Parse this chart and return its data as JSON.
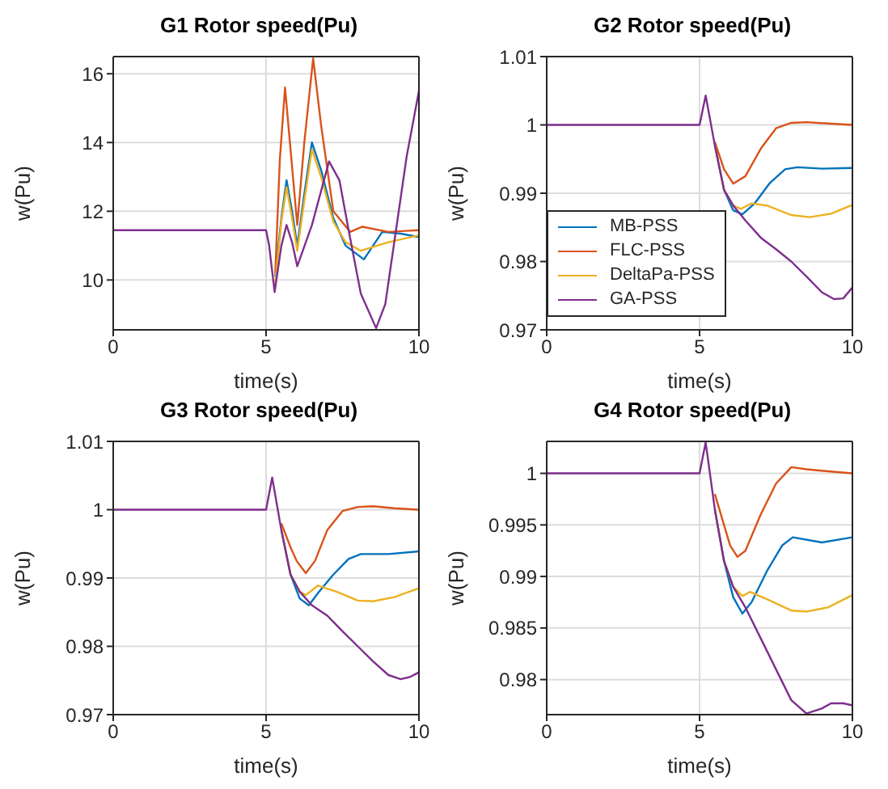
{
  "chart_data": [
    {
      "type": "line",
      "title": "G1 Rotor speed(Pu)",
      "xlabel": "time(s)",
      "ylabel": "w(Pu)",
      "xlim": [
        0,
        10
      ],
      "xticks": [
        0,
        5,
        10
      ],
      "ylim": [
        8.55,
        16.5
      ],
      "yticks": [
        10,
        12,
        14,
        16
      ],
      "grid": true,
      "legend": false,
      "series": [
        {
          "color": "#0072bd",
          "x": [
            5.3,
            5.5,
            5.67,
            5.85,
            6.02,
            6.25,
            6.5,
            6.8,
            7.2,
            7.6,
            8.2,
            8.8,
            9.4,
            10
          ],
          "values": [
            10.1,
            11.8,
            12.9,
            12.0,
            11.0,
            12.5,
            14.0,
            13.2,
            11.8,
            11.0,
            10.6,
            11.4,
            11.35,
            11.25
          ]
        },
        {
          "color": "#d95319",
          "x": [
            5.3,
            5.45,
            5.62,
            5.8,
            6.02,
            6.25,
            6.54,
            6.8,
            7.2,
            7.75,
            8.15,
            9,
            10
          ],
          "values": [
            10.2,
            13.5,
            15.6,
            13.8,
            11.6,
            14.0,
            16.45,
            14.5,
            12.0,
            11.4,
            11.55,
            11.4,
            11.45
          ]
        },
        {
          "color": "#edb120",
          "x": [
            5.3,
            5.5,
            5.67,
            5.85,
            6.02,
            6.25,
            6.5,
            6.8,
            7.2,
            7.6,
            8.1,
            9,
            10
          ],
          "values": [
            9.9,
            11.7,
            12.7,
            11.8,
            10.85,
            12.3,
            13.8,
            13.0,
            11.7,
            11.1,
            10.85,
            11.1,
            11.3
          ]
        },
        {
          "color": "#7e2f8e",
          "x": [
            0,
            5,
            5.1,
            5.28,
            5.5,
            5.67,
            5.85,
            6.02,
            6.5,
            7.06,
            7.4,
            7.7,
            8.1,
            8.6,
            8.9,
            9.25,
            9.6,
            10
          ],
          "values": [
            11.45,
            11.45,
            11.0,
            9.65,
            11.0,
            11.6,
            11.1,
            10.4,
            11.6,
            13.45,
            12.9,
            11.45,
            9.6,
            8.6,
            9.3,
            11.45,
            13.6,
            15.5
          ]
        }
      ]
    },
    {
      "type": "line",
      "title": "G2 Rotor speed(Pu)",
      "xlabel": "time(s)",
      "ylabel": "w(Pu)",
      "xlim": [
        0,
        10
      ],
      "xticks": [
        0,
        5,
        10
      ],
      "ylim": [
        0.97,
        1.01
      ],
      "yticks": [
        0.97,
        0.98,
        0.99,
        1,
        1.01
      ],
      "grid": true,
      "legend": "bottom left",
      "series": [
        {
          "name": "MB-PSS",
          "color": "#0072bd",
          "x": [
            5.5,
            5.8,
            6.1,
            6.4,
            6.8,
            7.3,
            7.8,
            8.2,
            9,
            10
          ],
          "values": [
            0.997,
            0.9905,
            0.9875,
            0.9869,
            0.9885,
            0.9915,
            0.9935,
            0.9938,
            0.9936,
            0.9937
          ]
        },
        {
          "name": "FLC-PSS",
          "color": "#d95319",
          "x": [
            5.5,
            5.8,
            6.1,
            6.5,
            7.0,
            7.5,
            8.0,
            8.5,
            9.2,
            10
          ],
          "values": [
            0.9975,
            0.9935,
            0.9914,
            0.9925,
            0.9965,
            0.9995,
            1.0003,
            1.0004,
            1.0002,
            1.0
          ]
        },
        {
          "name": "DeltaPa-PSS",
          "color": "#edb120",
          "x": [
            5.5,
            5.8,
            6.1,
            6.35,
            6.7,
            7.2,
            8.0,
            8.6,
            9.3,
            10
          ],
          "values": [
            0.997,
            0.9905,
            0.9882,
            0.9877,
            0.9885,
            0.9882,
            0.9868,
            0.9865,
            0.987,
            0.9883
          ]
        },
        {
          "name": "GA-PSS",
          "color": "#7e2f8e",
          "x": [
            0,
            5,
            5.2,
            5.5,
            5.8,
            6.1,
            6.5,
            7.0,
            7.5,
            8.0,
            8.5,
            9.0,
            9.4,
            9.7,
            10
          ],
          "values": [
            1,
            1,
            1.0043,
            0.997,
            0.9905,
            0.9882,
            0.986,
            0.9835,
            0.9818,
            0.98,
            0.9778,
            0.9755,
            0.9745,
            0.9746,
            0.9762
          ]
        }
      ]
    },
    {
      "type": "line",
      "title": "G3 Rotor speed(Pu)",
      "xlabel": "time(s)",
      "ylabel": "w(Pu)",
      "xlim": [
        0,
        10
      ],
      "xticks": [
        0,
        5,
        10
      ],
      "ylim": [
        0.97,
        1.01
      ],
      "yticks": [
        0.97,
        0.98,
        0.99,
        1,
        1.01
      ],
      "grid": true,
      "legend": false,
      "series": [
        {
          "color": "#0072bd",
          "x": [
            5.5,
            5.8,
            6.1,
            6.4,
            6.7,
            7.2,
            7.7,
            8.1,
            9,
            10
          ],
          "values": [
            0.997,
            0.9905,
            0.987,
            0.986,
            0.9878,
            0.9905,
            0.9928,
            0.9935,
            0.9935,
            0.9939
          ]
        },
        {
          "color": "#d95319",
          "x": [
            5.5,
            5.8,
            6.0,
            6.3,
            6.6,
            7.0,
            7.5,
            8.0,
            8.5,
            9.2,
            10
          ],
          "values": [
            0.998,
            0.9945,
            0.9925,
            0.9907,
            0.9925,
            0.997,
            0.9998,
            1.0004,
            1.0005,
            1.0002,
            1.0
          ]
        },
        {
          "color": "#edb120",
          "x": [
            5.5,
            5.8,
            6.1,
            6.3,
            6.7,
            7.3,
            8.0,
            8.5,
            9.2,
            10
          ],
          "values": [
            0.997,
            0.9905,
            0.988,
            0.9875,
            0.9889,
            0.988,
            0.9867,
            0.9866,
            0.9872,
            0.9885
          ]
        },
        {
          "color": "#7e2f8e",
          "x": [
            0,
            5,
            5.2,
            5.5,
            5.8,
            6.1,
            6.5,
            7.0,
            7.5,
            8.0,
            8.5,
            9.0,
            9.4,
            9.7,
            10
          ],
          "values": [
            1,
            1,
            1.0047,
            0.997,
            0.9905,
            0.988,
            0.986,
            0.9845,
            0.9822,
            0.98,
            0.9778,
            0.9758,
            0.9752,
            0.9755,
            0.9762
          ]
        }
      ]
    },
    {
      "type": "line",
      "title": "G4 Rotor speed(Pu)",
      "xlabel": "time(s)",
      "ylabel": "w(Pu)",
      "xlim": [
        0,
        10
      ],
      "xticks": [
        0,
        5,
        10
      ],
      "ylim": [
        0.9766,
        1.0031
      ],
      "yticks": [
        0.98,
        0.985,
        0.99,
        0.995,
        1
      ],
      "grid": true,
      "legend": false,
      "series": [
        {
          "color": "#0072bd",
          "x": [
            5.5,
            5.8,
            6.1,
            6.4,
            6.7,
            7.2,
            7.7,
            8.05,
            9,
            10
          ],
          "values": [
            0.9965,
            0.9915,
            0.988,
            0.9864,
            0.9875,
            0.9905,
            0.993,
            0.9938,
            0.9933,
            0.9938
          ]
        },
        {
          "color": "#d95319",
          "x": [
            5.5,
            5.8,
            6.0,
            6.24,
            6.5,
            7.0,
            7.5,
            8.0,
            8.5,
            9.2,
            10
          ],
          "values": [
            0.998,
            0.995,
            0.993,
            0.9919,
            0.9925,
            0.996,
            0.999,
            1.0006,
            1.0004,
            1.0002,
            1.0
          ]
        },
        {
          "color": "#edb120",
          "x": [
            5.5,
            5.8,
            6.1,
            6.4,
            6.65,
            7.2,
            8.0,
            8.5,
            9.2,
            10
          ],
          "values": [
            0.9965,
            0.9915,
            0.989,
            0.9881,
            0.9885,
            0.9878,
            0.9867,
            0.9866,
            0.987,
            0.9882
          ]
        },
        {
          "color": "#7e2f8e",
          "x": [
            0,
            5,
            5.2,
            5.5,
            5.8,
            6.1,
            6.5,
            7.0,
            7.5,
            8.0,
            8.5,
            9.0,
            9.3,
            9.7,
            10
          ],
          "values": [
            1,
            1,
            1.003,
            0.9965,
            0.9915,
            0.989,
            0.987,
            0.984,
            0.981,
            0.978,
            0.9767,
            0.9772,
            0.9777,
            0.9777,
            0.9775
          ]
        }
      ]
    }
  ]
}
